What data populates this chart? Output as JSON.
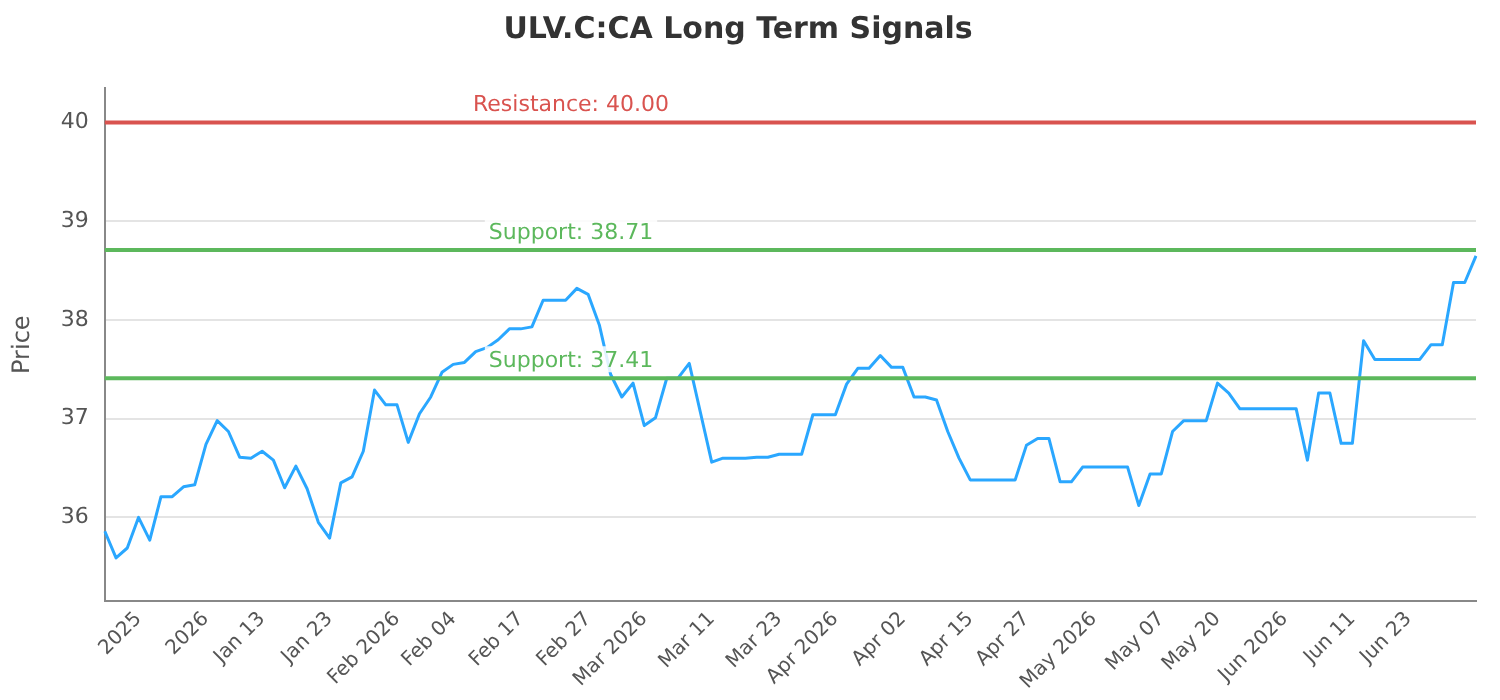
{
  "chart_data": {
    "type": "line",
    "title": "ULV.C:CA Long Term Signals",
    "ylabel": "Price",
    "categories": [
      null,
      null,
      null,
      "2025",
      null,
      null,
      null,
      null,
      null,
      "2026",
      null,
      null,
      null,
      null,
      "Jan 13",
      null,
      null,
      null,
      null,
      null,
      "Jan 23",
      null,
      null,
      null,
      null,
      null,
      "Feb 2026",
      null,
      null,
      null,
      null,
      "Feb 04",
      null,
      null,
      null,
      null,
      null,
      "Feb 17",
      null,
      null,
      null,
      null,
      null,
      "Feb 27",
      null,
      null,
      null,
      null,
      "Mar 2026",
      null,
      null,
      null,
      null,
      null,
      "Mar 11",
      null,
      null,
      null,
      null,
      null,
      "Mar 23",
      null,
      null,
      null,
      null,
      "Apr 2026",
      null,
      null,
      null,
      null,
      null,
      "Apr 02",
      null,
      null,
      null,
      null,
      null,
      "Apr 15",
      null,
      null,
      null,
      null,
      "Apr 27",
      null,
      null,
      null,
      null,
      null,
      "May 2026",
      null,
      null,
      null,
      null,
      null,
      "May 07",
      null,
      null,
      null,
      null,
      "May 20",
      null,
      null,
      null,
      null,
      null,
      "Jun 2026",
      null,
      null,
      null,
      null,
      null,
      "Jun 11",
      null,
      null,
      null,
      null,
      "Jun 23",
      null,
      null,
      null,
      null,
      null,
      null
    ],
    "series": [
      {
        "color": "#2aa7ff",
        "values": [
          35.86,
          35.59,
          35.69,
          36.0,
          35.77,
          36.21,
          36.21,
          36.31,
          36.33,
          36.74,
          36.98,
          36.87,
          36.61,
          36.6,
          36.67,
          36.58,
          36.3,
          36.52,
          36.29,
          35.95,
          35.79,
          36.35,
          36.41,
          36.67,
          37.29,
          37.14,
          37.14,
          36.76,
          37.05,
          37.22,
          37.47,
          37.55,
          37.57,
          37.68,
          37.72,
          37.8,
          37.91,
          37.91,
          37.93,
          38.2,
          38.2,
          38.2,
          38.32,
          38.26,
          37.95,
          37.45,
          37.22,
          37.36,
          36.93,
          37.01,
          37.41,
          37.41,
          37.56,
          37.06,
          36.56,
          36.6,
          36.6,
          36.6,
          36.61,
          36.61,
          36.64,
          36.64,
          36.64,
          37.04,
          37.04,
          37.04,
          37.35,
          37.51,
          37.51,
          37.64,
          37.52,
          37.52,
          37.22,
          37.22,
          37.19,
          36.87,
          36.6,
          36.38,
          36.38,
          36.38,
          36.38,
          36.38,
          36.73,
          36.8,
          36.8,
          36.36,
          36.36,
          36.51,
          36.51,
          36.51,
          36.51,
          36.51,
          36.12,
          36.44,
          36.44,
          36.87,
          36.98,
          36.98,
          36.98,
          37.36,
          37.26,
          37.1,
          37.1,
          37.1,
          37.1,
          37.1,
          37.1,
          36.58,
          37.26,
          37.26,
          36.75,
          36.75,
          37.79,
          37.6,
          37.6,
          37.6,
          37.6,
          37.6,
          37.75,
          37.75,
          38.38,
          38.38,
          38.65
        ]
      }
    ],
    "ylim": [
      35.15,
      40.35
    ],
    "yticks": [
      36,
      37,
      38,
      39,
      40
    ],
    "ref_lines": [
      {
        "axis": "y",
        "value": 40,
        "label": "Resistance: 40.00",
        "color": "#d9534f"
      },
      {
        "axis": "y",
        "value": 38.71,
        "label": "Support: 38.71",
        "color": "#5cb85c"
      },
      {
        "axis": "y",
        "value": 37.41,
        "label": "Support: 37.41",
        "color": "#5cb85c"
      }
    ],
    "grid": "y",
    "legend": false,
    "marker": "none",
    "line_style": "solid"
  }
}
